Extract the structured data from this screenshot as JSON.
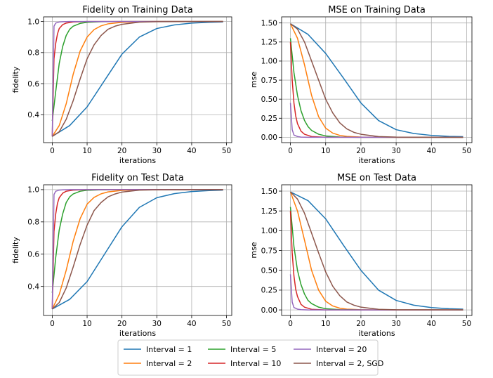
{
  "chart_data": [
    {
      "type": "line",
      "title": "Fidelity on Training Data",
      "xlabel": "iterations",
      "ylabel": "fidelity",
      "xlim": [
        -2.5,
        51.5
      ],
      "ylim": [
        0.22,
        1.03
      ],
      "xticks": [
        0,
        10,
        20,
        30,
        40,
        50
      ],
      "yticks": [
        0.4,
        0.6,
        0.8,
        1.0
      ],
      "ytick_labels": [
        "0.4",
        "0.6",
        "0.8",
        "1.0"
      ],
      "grid": true,
      "series": [
        {
          "name": "Interval = 1",
          "color": "#1f77b4",
          "x": [
            0,
            5,
            10,
            15,
            20,
            25,
            30,
            35,
            40,
            45,
            49
          ],
          "y": [
            0.26,
            0.33,
            0.45,
            0.62,
            0.79,
            0.9,
            0.955,
            0.978,
            0.99,
            0.995,
            0.997
          ]
        },
        {
          "name": "Interval = 2",
          "color": "#ff7f0e",
          "x": [
            0,
            2,
            4,
            6,
            8,
            10,
            12,
            14,
            16,
            20,
            25,
            30,
            49
          ],
          "y": [
            0.26,
            0.33,
            0.47,
            0.66,
            0.81,
            0.9,
            0.948,
            0.972,
            0.985,
            0.995,
            0.999,
            1.0,
            1.0
          ]
        },
        {
          "name": "Interval = 5",
          "color": "#2ca02c",
          "x": [
            0,
            1,
            2,
            3,
            4,
            5,
            6,
            8,
            10,
            14,
            20,
            49
          ],
          "y": [
            0.36,
            0.55,
            0.73,
            0.84,
            0.91,
            0.95,
            0.97,
            0.988,
            0.995,
            0.999,
            1.0,
            1.0
          ]
        },
        {
          "name": "Interval = 10",
          "color": "#d62728",
          "x": [
            0,
            0.5,
            1,
            1.5,
            2,
            3,
            4,
            6,
            10,
            49
          ],
          "y": [
            0.26,
            0.76,
            0.86,
            0.92,
            0.955,
            0.98,
            0.99,
            0.997,
            1.0,
            1.0
          ]
        },
        {
          "name": "Interval = 20",
          "color": "#9467bd",
          "x": [
            0,
            0.5,
            1,
            2,
            3,
            5,
            49
          ],
          "y": [
            0.26,
            0.97,
            0.99,
            0.997,
            0.999,
            1.0,
            1.0
          ]
        },
        {
          "name": "Interval = 2, SGD",
          "color": "#8c564b",
          "x": [
            0,
            2,
            4,
            6,
            8,
            10,
            12,
            14,
            16,
            18,
            20,
            25,
            30,
            49
          ],
          "y": [
            0.26,
            0.29,
            0.37,
            0.49,
            0.63,
            0.76,
            0.85,
            0.91,
            0.95,
            0.97,
            0.982,
            0.996,
            0.999,
            1.0
          ]
        }
      ]
    },
    {
      "type": "line",
      "title": "MSE on Training Data",
      "xlabel": "iterations",
      "ylabel": "mse",
      "xlim": [
        -2.5,
        51.5
      ],
      "ylim": [
        -0.07,
        1.58
      ],
      "xticks": [
        0,
        10,
        20,
        30,
        40,
        50
      ],
      "yticks": [
        0.0,
        0.25,
        0.5,
        0.75,
        1.0,
        1.25,
        1.5
      ],
      "ytick_labels": [
        "0.00",
        "0.25",
        "0.50",
        "0.75",
        "1.00",
        "1.25",
        "1.50"
      ],
      "grid": true,
      "series": [
        {
          "name": "Interval = 1",
          "color": "#1f77b4",
          "x": [
            0,
            5,
            10,
            15,
            20,
            25,
            30,
            35,
            40,
            45,
            49
          ],
          "y": [
            1.49,
            1.35,
            1.1,
            0.78,
            0.45,
            0.22,
            0.1,
            0.05,
            0.025,
            0.012,
            0.008
          ]
        },
        {
          "name": "Interval = 2",
          "color": "#ff7f0e",
          "x": [
            0,
            2,
            4,
            6,
            8,
            10,
            12,
            14,
            16,
            20,
            30,
            49
          ],
          "y": [
            1.49,
            1.3,
            0.95,
            0.55,
            0.27,
            0.12,
            0.055,
            0.025,
            0.012,
            0.003,
            0.0,
            0.0
          ]
        },
        {
          "name": "Interval = 5",
          "color": "#2ca02c",
          "x": [
            0,
            1,
            2,
            3,
            4,
            5,
            6,
            8,
            10,
            14,
            20,
            49
          ],
          "y": [
            1.3,
            0.85,
            0.55,
            0.35,
            0.22,
            0.14,
            0.09,
            0.04,
            0.018,
            0.004,
            0.0,
            0.0
          ]
        },
        {
          "name": "Interval = 10",
          "color": "#d62728",
          "x": [
            0,
            0.5,
            1,
            1.5,
            2,
            3,
            4,
            6,
            10,
            49
          ],
          "y": [
            1.25,
            0.75,
            0.45,
            0.28,
            0.18,
            0.08,
            0.04,
            0.01,
            0.0,
            0.0
          ]
        },
        {
          "name": "Interval = 20",
          "color": "#9467bd",
          "x": [
            0,
            0.5,
            1,
            2,
            3,
            5,
            49
          ],
          "y": [
            0.45,
            0.1,
            0.03,
            0.01,
            0.003,
            0.0,
            0.0
          ]
        },
        {
          "name": "Interval = 2, SGD",
          "color": "#8c564b",
          "x": [
            0,
            2,
            4,
            6,
            8,
            10,
            12,
            14,
            16,
            18,
            20,
            25,
            30,
            49
          ],
          "y": [
            1.49,
            1.42,
            1.25,
            1.0,
            0.75,
            0.5,
            0.32,
            0.19,
            0.11,
            0.065,
            0.04,
            0.01,
            0.003,
            0.0
          ]
        }
      ]
    },
    {
      "type": "line",
      "title": "Fidelity on Test Data",
      "xlabel": "iterations",
      "ylabel": "fidelity",
      "xlim": [
        -2.5,
        51.5
      ],
      "ylim": [
        0.22,
        1.03
      ],
      "xticks": [
        0,
        10,
        20,
        30,
        40,
        50
      ],
      "yticks": [
        0.4,
        0.6,
        0.8,
        1.0
      ],
      "ytick_labels": [
        "0.4",
        "0.6",
        "0.8",
        "1.0"
      ],
      "grid": true,
      "series": [
        {
          "name": "Interval = 1",
          "color": "#1f77b4",
          "x": [
            0,
            5,
            10,
            15,
            20,
            25,
            30,
            35,
            40,
            45,
            49
          ],
          "y": [
            0.26,
            0.32,
            0.43,
            0.6,
            0.77,
            0.89,
            0.95,
            0.975,
            0.988,
            0.994,
            0.997
          ]
        },
        {
          "name": "Interval = 2",
          "color": "#ff7f0e",
          "x": [
            0,
            2,
            4,
            6,
            8,
            10,
            12,
            14,
            16,
            20,
            25,
            30,
            49
          ],
          "y": [
            0.26,
            0.35,
            0.5,
            0.68,
            0.82,
            0.91,
            0.952,
            0.974,
            0.986,
            0.995,
            0.999,
            1.0,
            1.0
          ]
        },
        {
          "name": "Interval = 5",
          "color": "#2ca02c",
          "x": [
            0,
            1,
            2,
            3,
            4,
            5,
            6,
            8,
            10,
            14,
            20,
            49
          ],
          "y": [
            0.36,
            0.58,
            0.75,
            0.85,
            0.92,
            0.955,
            0.973,
            0.99,
            0.996,
            0.999,
            1.0,
            1.0
          ]
        },
        {
          "name": "Interval = 10",
          "color": "#d62728",
          "x": [
            0,
            0.5,
            1,
            1.5,
            2,
            3,
            4,
            6,
            10,
            49
          ],
          "y": [
            0.26,
            0.74,
            0.85,
            0.915,
            0.95,
            0.978,
            0.99,
            0.997,
            1.0,
            1.0
          ]
        },
        {
          "name": "Interval = 20",
          "color": "#9467bd",
          "x": [
            0,
            0.5,
            1,
            2,
            3,
            5,
            49
          ],
          "y": [
            0.26,
            0.97,
            0.99,
            0.997,
            0.999,
            1.0,
            1.0
          ]
        },
        {
          "name": "Interval = 2, SGD",
          "color": "#8c564b",
          "x": [
            0,
            2,
            4,
            6,
            8,
            10,
            12,
            14,
            16,
            18,
            20,
            25,
            30,
            49
          ],
          "y": [
            0.26,
            0.3,
            0.39,
            0.52,
            0.66,
            0.78,
            0.87,
            0.92,
            0.955,
            0.973,
            0.985,
            0.997,
            0.999,
            1.0
          ]
        }
      ]
    },
    {
      "type": "line",
      "title": "MSE on Test Data",
      "xlabel": "iterations",
      "ylabel": "mse",
      "xlim": [
        -2.5,
        51.5
      ],
      "ylim": [
        -0.07,
        1.58
      ],
      "xticks": [
        0,
        10,
        20,
        30,
        40,
        50
      ],
      "yticks": [
        0.0,
        0.25,
        0.5,
        0.75,
        1.0,
        1.25,
        1.5
      ],
      "ytick_labels": [
        "0.00",
        "0.25",
        "0.50",
        "0.75",
        "1.00",
        "1.25",
        "1.50"
      ],
      "grid": true,
      "series": [
        {
          "name": "Interval = 1",
          "color": "#1f77b4",
          "x": [
            0,
            5,
            10,
            15,
            20,
            25,
            30,
            35,
            40,
            45,
            49
          ],
          "y": [
            1.49,
            1.38,
            1.15,
            0.82,
            0.5,
            0.25,
            0.12,
            0.06,
            0.03,
            0.015,
            0.01
          ]
        },
        {
          "name": "Interval = 2",
          "color": "#ff7f0e",
          "x": [
            0,
            2,
            4,
            6,
            8,
            10,
            12,
            14,
            16,
            20,
            30,
            49
          ],
          "y": [
            1.49,
            1.25,
            0.88,
            0.5,
            0.25,
            0.11,
            0.05,
            0.022,
            0.01,
            0.002,
            0.0,
            0.0
          ]
        },
        {
          "name": "Interval = 5",
          "color": "#2ca02c",
          "x": [
            0,
            1,
            2,
            3,
            4,
            5,
            6,
            8,
            10,
            14,
            20,
            49
          ],
          "y": [
            1.3,
            0.8,
            0.5,
            0.32,
            0.2,
            0.12,
            0.08,
            0.035,
            0.015,
            0.003,
            0.0,
            0.0
          ]
        },
        {
          "name": "Interval = 10",
          "color": "#d62728",
          "x": [
            0,
            0.5,
            1,
            1.5,
            2,
            3,
            4,
            6,
            10,
            49
          ],
          "y": [
            1.25,
            0.72,
            0.43,
            0.26,
            0.17,
            0.07,
            0.035,
            0.008,
            0.0,
            0.0
          ]
        },
        {
          "name": "Interval = 20",
          "color": "#9467bd",
          "x": [
            0,
            0.5,
            1,
            2,
            3,
            5,
            49
          ],
          "y": [
            0.45,
            0.1,
            0.03,
            0.01,
            0.003,
            0.0,
            0.0
          ]
        },
        {
          "name": "Interval = 2, SGD",
          "color": "#8c564b",
          "x": [
            0,
            2,
            4,
            6,
            8,
            10,
            12,
            14,
            16,
            18,
            20,
            25,
            30,
            49
          ],
          "y": [
            1.49,
            1.4,
            1.22,
            0.97,
            0.72,
            0.48,
            0.3,
            0.18,
            0.1,
            0.06,
            0.035,
            0.008,
            0.002,
            0.0
          ]
        }
      ]
    }
  ],
  "legend": {
    "placement": "bottom-center",
    "entries": [
      {
        "label": "Interval = 1",
        "color": "#1f77b4"
      },
      {
        "label": "Interval = 2",
        "color": "#ff7f0e"
      },
      {
        "label": "Interval = 5",
        "color": "#2ca02c"
      },
      {
        "label": "Interval = 10",
        "color": "#d62728"
      },
      {
        "label": "Interval = 20",
        "color": "#9467bd"
      },
      {
        "label": "Interval = 2, SGD",
        "color": "#8c564b"
      }
    ]
  }
}
